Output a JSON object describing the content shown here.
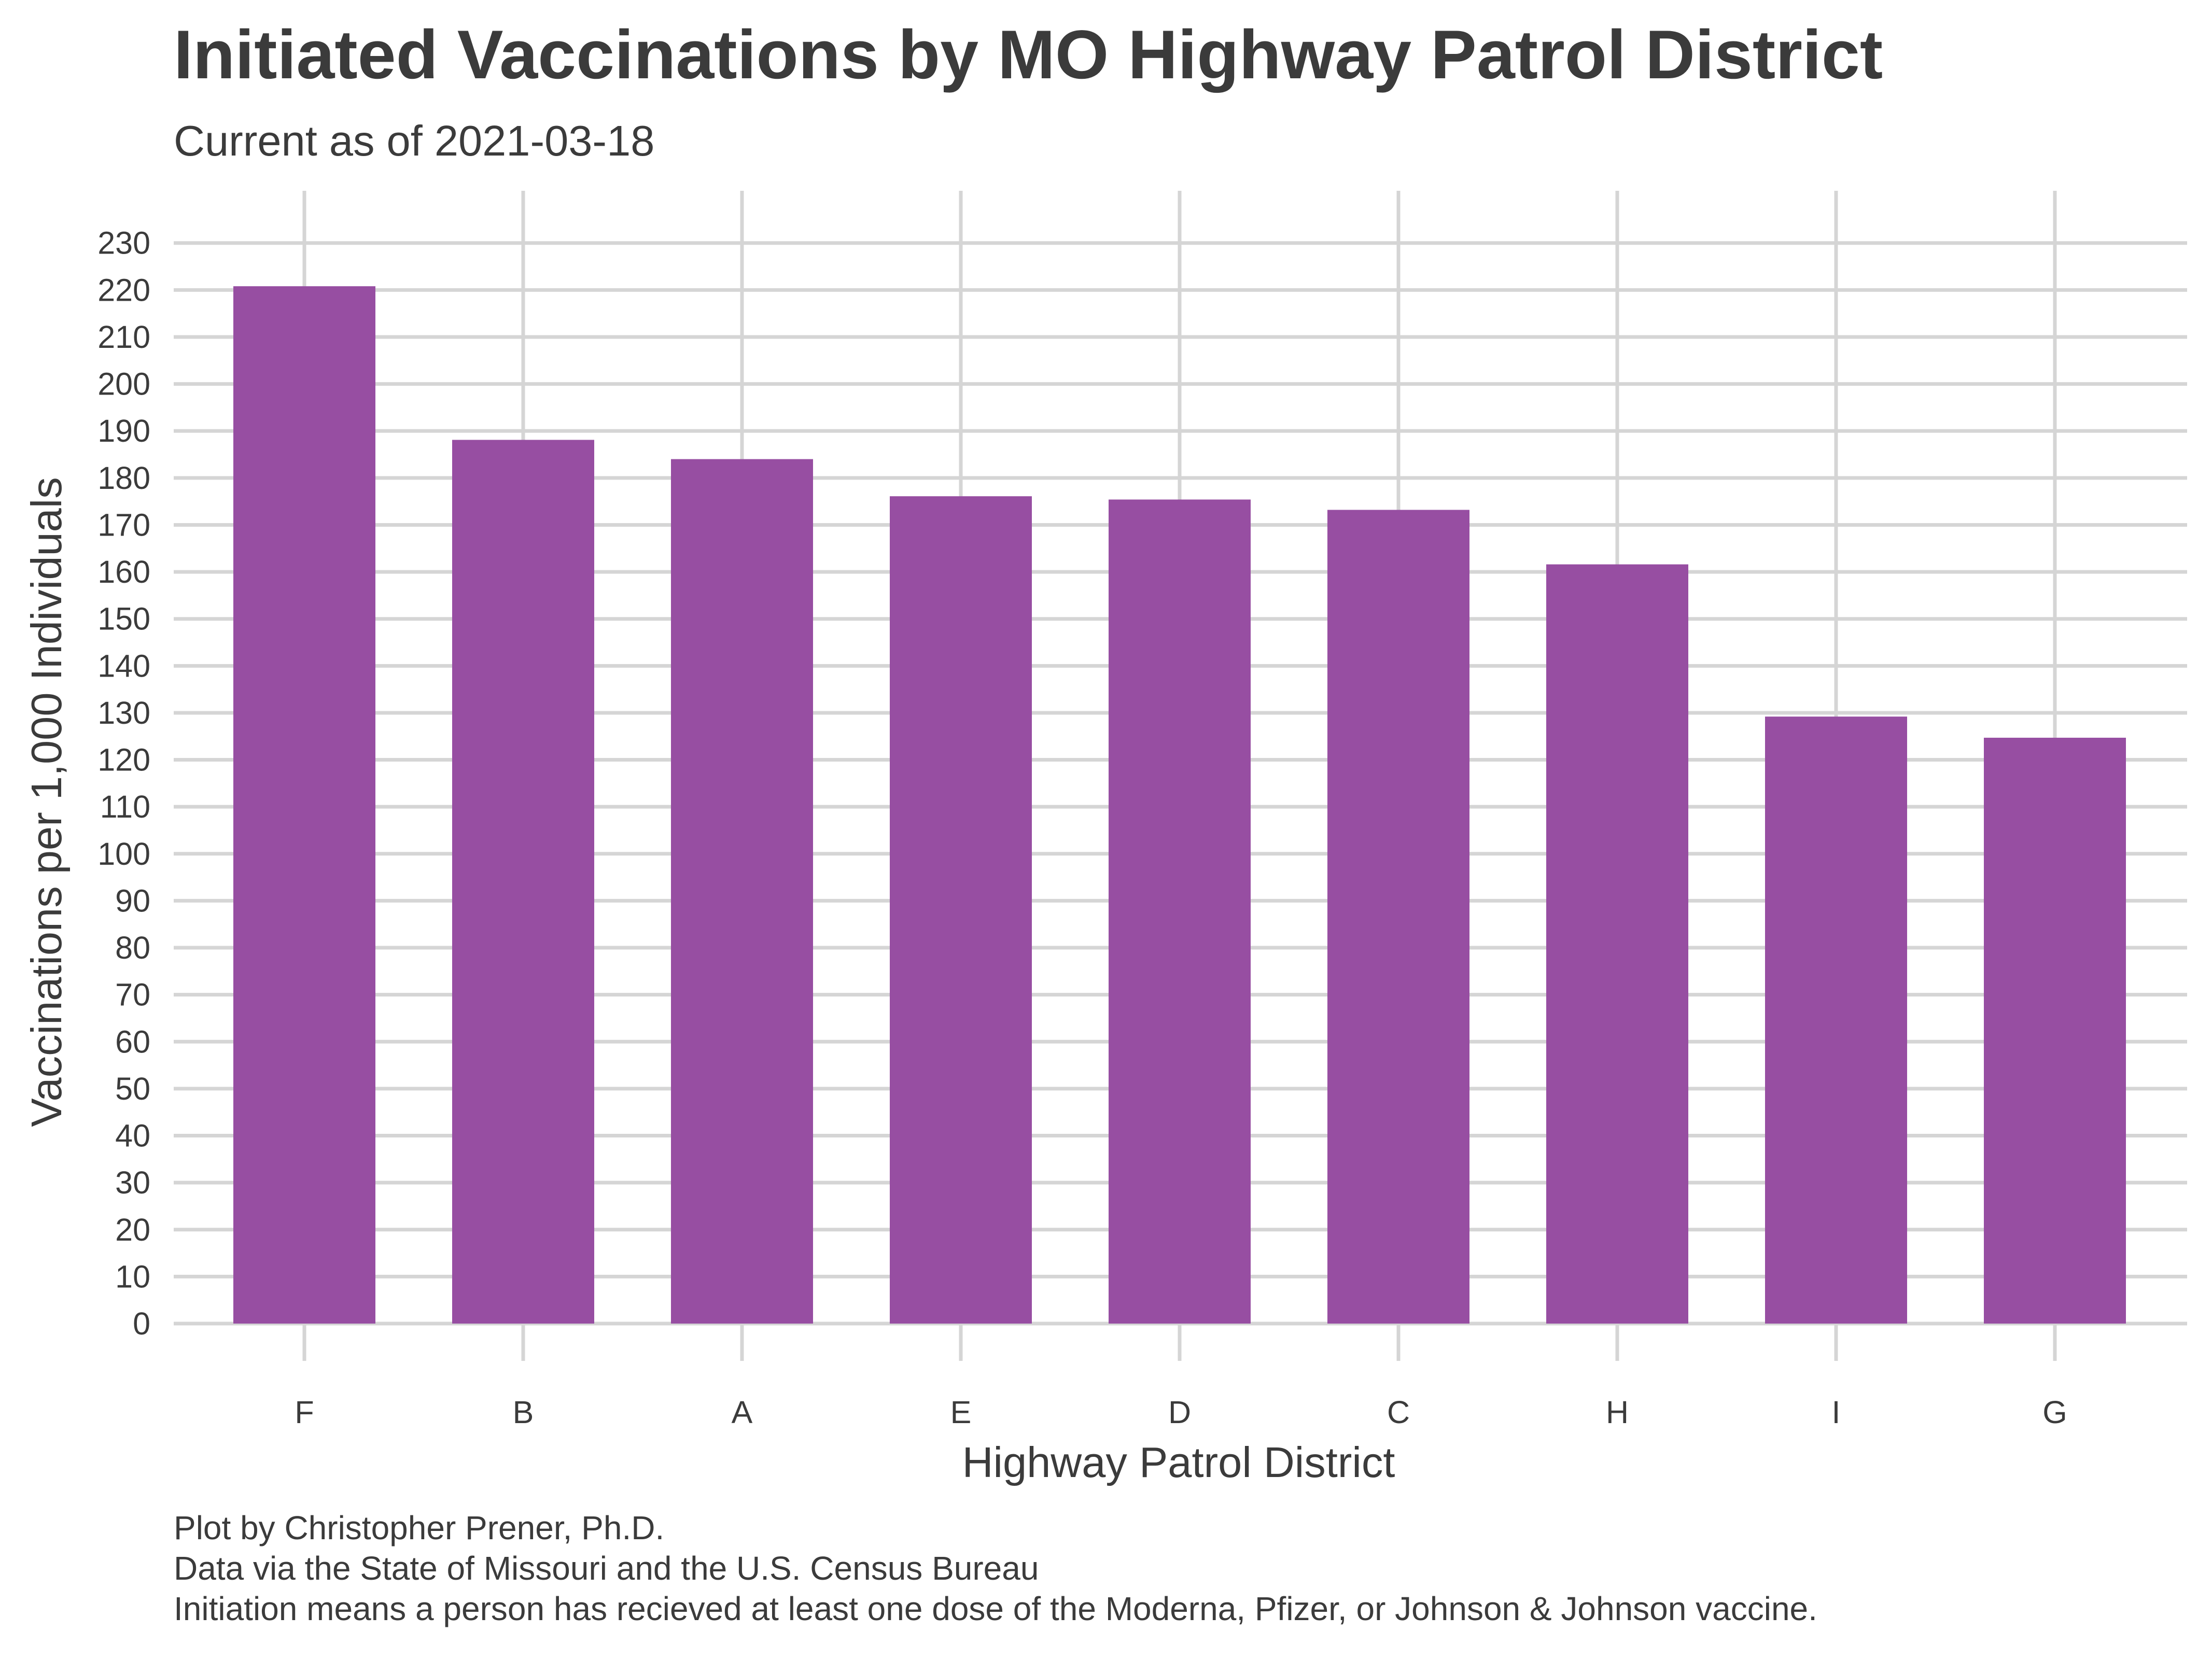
{
  "chart_data": {
    "type": "bar",
    "title": "Initiated Vaccinations by MO Highway Patrol District",
    "subtitle": "Current as of 2021-03-18",
    "xlabel": "Highway Patrol District",
    "ylabel": "Vaccinations per 1,000 Individuals",
    "categories": [
      "F",
      "B",
      "A",
      "E",
      "D",
      "C",
      "H",
      "I",
      "G"
    ],
    "values": [
      220.8,
      188.1,
      184.0,
      176.1,
      175.4,
      173.2,
      161.6,
      129.2,
      124.7
    ],
    "ylim": [
      0,
      230
    ],
    "yticks": [
      0,
      10,
      20,
      30,
      40,
      50,
      60,
      70,
      80,
      90,
      100,
      110,
      120,
      130,
      140,
      150,
      160,
      170,
      180,
      190,
      200,
      210,
      220,
      230
    ],
    "bar_color": "#974ea2",
    "grid": true,
    "grid_color": "#d5d5d5",
    "caption": [
      "Plot by Christopher Prener, Ph.D.",
      "Data via the State of Missouri and the U.S. Census Bureau",
      "Initiation means a person has recieved at least one dose of the Moderna, Pfizer, or Johnson & Johnson vaccine."
    ]
  }
}
